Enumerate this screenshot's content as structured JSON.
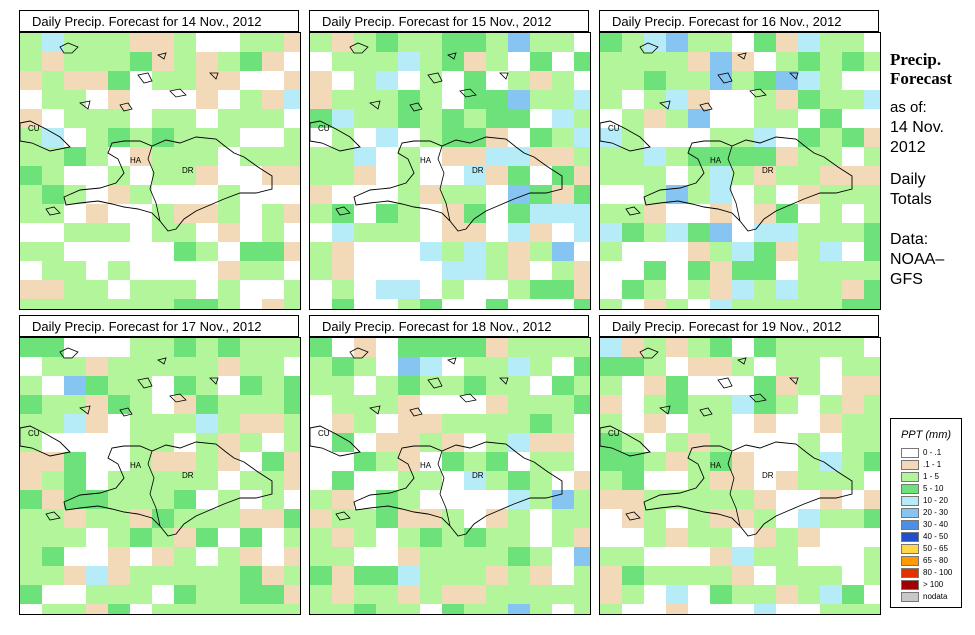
{
  "panels": [
    {
      "title": "Daily Precip. Forecast for  14 Nov., 2012"
    },
    {
      "title": "Daily Precip. Forecast for  15 Nov., 2012"
    },
    {
      "title": "Daily Precip. Forecast for  16 Nov., 2012"
    },
    {
      "title": "Daily Precip. Forecast for  17 Nov., 2012"
    },
    {
      "title": "Daily Precip. Forecast for  18 Nov., 2012"
    },
    {
      "title": "Daily Precip. Forecast for  19 Nov., 2012"
    }
  ],
  "map_labels": {
    "cuba": "CU",
    "haiti": "HA",
    "dominican_republic": "DR"
  },
  "sidebar": {
    "title_line1": "Precip.",
    "title_line2": "Forecast",
    "asof_line1": "as of:",
    "asof_line2": "14 Nov.",
    "asof_line3": "2012",
    "daily_line1": "Daily",
    "daily_line2": "Totals",
    "data_line1": "Data:",
    "data_line2": "NOAA–",
    "data_line3": "GFS"
  },
  "legend": {
    "title": "PPT (mm)",
    "items": [
      {
        "label": "0 - .1",
        "color": "#ffffff"
      },
      {
        "label": ".1 - 1",
        "color": "#f2d9b8"
      },
      {
        "label": "1 - 5",
        "color": "#b3f59b"
      },
      {
        "label": "5 - 10",
        "color": "#6ee27a"
      },
      {
        "label": "10 - 20",
        "color": "#b5ecf7"
      },
      {
        "label": "20 - 30",
        "color": "#86c5f2"
      },
      {
        "label": "30 - 40",
        "color": "#4e8fe6"
      },
      {
        "label": "40 - 50",
        "color": "#1f4fc9"
      },
      {
        "label": "50 - 65",
        "color": "#ffd84a"
      },
      {
        "label": "65 - 80",
        "color": "#ff9a00"
      },
      {
        "label": "80 - 100",
        "color": "#e23200"
      },
      {
        "label": "> 100",
        "color": "#a00000"
      },
      {
        "label": "nodata",
        "color": "#c8c8c8"
      }
    ]
  }
}
